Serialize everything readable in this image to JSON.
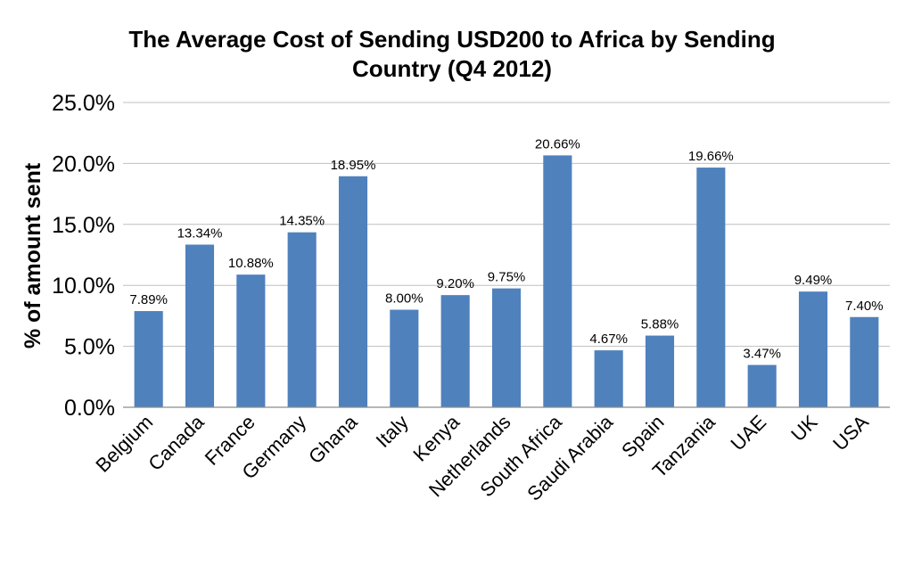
{
  "chart_data": {
    "type": "bar",
    "title": "The Average Cost of Sending USD200 to Africa by Sending Country (Q4 2012)",
    "title_lines": [
      "The Average Cost of Sending USD200 to Africa by Sending",
      "Country (Q4 2012)"
    ],
    "xlabel": "",
    "ylabel": "% of amount sent",
    "ylim": [
      0,
      25
    ],
    "y_ticks": [
      "0.0%",
      "5.0%",
      "10.0%",
      "15.0%",
      "20.0%",
      "25.0%"
    ],
    "grid": true,
    "bar_color": "#4f81bd",
    "categories": [
      "Belgium",
      "Canada",
      "France",
      "Germany",
      "Ghana",
      "Italy",
      "Kenya",
      "Netherlands",
      "South Africa",
      "Saudi Arabia",
      "Spain",
      "Tanzania",
      "UAE",
      "UK",
      "USA"
    ],
    "values": [
      7.89,
      13.34,
      10.88,
      14.35,
      18.95,
      8.0,
      9.2,
      9.75,
      20.66,
      4.67,
      5.88,
      19.66,
      3.47,
      9.49,
      7.4
    ],
    "data_labels": [
      "7.89%",
      "13.34%",
      "10.88%",
      "14.35%",
      "18.95%",
      "8.00%",
      "9.20%",
      "9.75%",
      "20.66%",
      "4.67%",
      "5.88%",
      "19.66%",
      "3.47%",
      "9.49%",
      "7.40%"
    ]
  }
}
